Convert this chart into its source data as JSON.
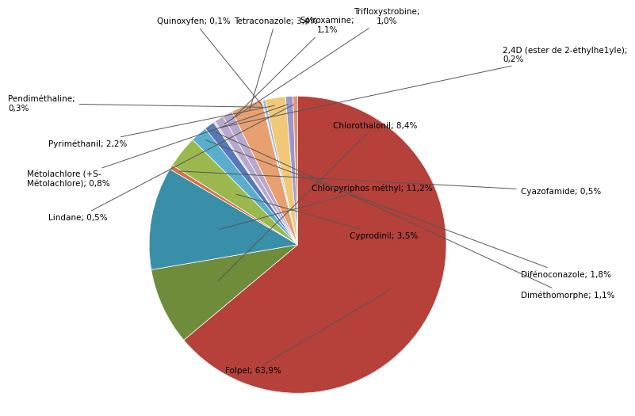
{
  "slices": [
    {
      "label": "Folpel; 63,9%",
      "value": 63.9,
      "color": "#b5413a"
    },
    {
      "label": "Chlorothalonil; 8,4%",
      "value": 8.4,
      "color": "#6e8c3a"
    },
    {
      "label": "Chlorpyriphos méthyl; 11,2%",
      "value": 11.2,
      "color": "#3a8fa8"
    },
    {
      "label": "Cyazofamide; 0,5%",
      "value": 0.5,
      "color": "#d4734a"
    },
    {
      "label": "Cyprodinil; 3,5%",
      "value": 3.5,
      "color": "#9ab84e"
    },
    {
      "label": "Difénoconazole; 1,8%",
      "value": 1.8,
      "color": "#5aaecc"
    },
    {
      "label": "Diméthomorphe; 1,1%",
      "value": 1.1,
      "color": "#5878b8"
    },
    {
      "label": "2,4D (ester de 2-éthylhe1yle);\n0,2%",
      "value": 0.2,
      "color": "#d0d0d0"
    },
    {
      "label": "Trifloxystrobine;\n1,0%",
      "value": 1.0,
      "color": "#b8a8cc"
    },
    {
      "label": "Spiroxamine;\n1,1%",
      "value": 1.1,
      "color": "#b8a8cc"
    },
    {
      "label": "Tetraconazole; 3,4%",
      "value": 3.4,
      "color": "#e8a070"
    },
    {
      "label": "Quinoxyfen; 0,1%",
      "value": 0.1,
      "color": "#c8c8c8"
    },
    {
      "label": "Pendiméthaline;\n0,3%",
      "value": 0.3,
      "color": "#9ab8d8"
    },
    {
      "label": "Pyriméthanil; 2,2%",
      "value": 2.2,
      "color": "#f0c878"
    },
    {
      "label": "Métolachlore (+S-\nMétolachlore); 0,8%",
      "value": 0.8,
      "color": "#9898cc"
    },
    {
      "label": "Lindane; 0,5%",
      "value": 0.5,
      "color": "#e89070"
    }
  ],
  "background_color": "#ffffff",
  "text_color": "#000000",
  "fontsize": 7.5
}
